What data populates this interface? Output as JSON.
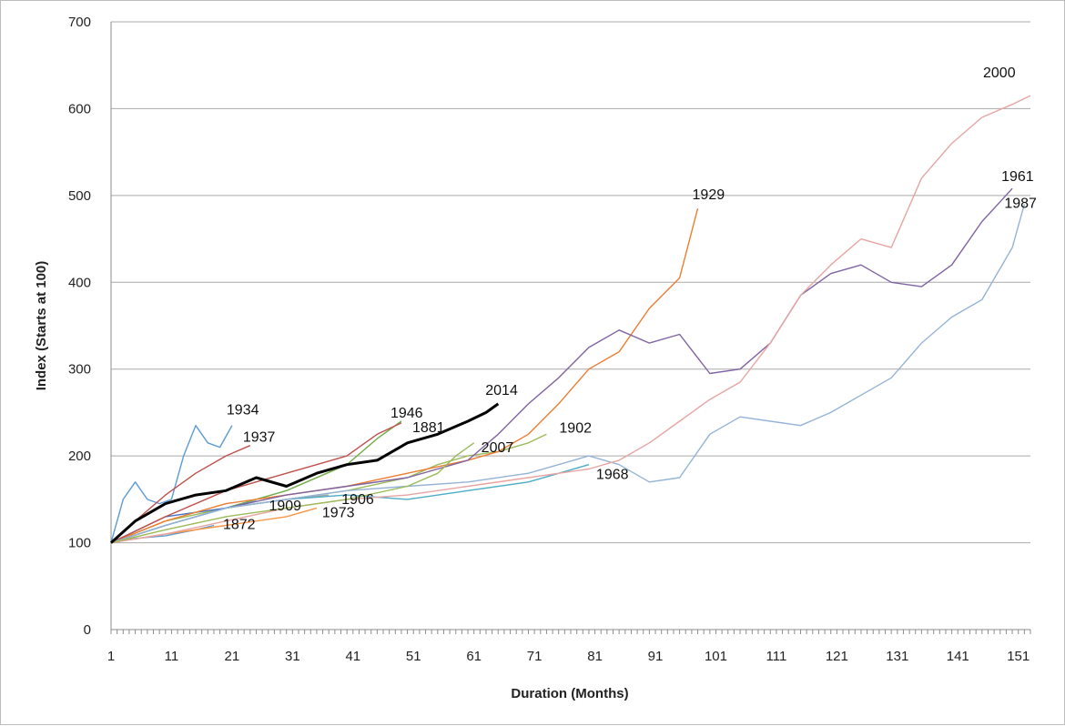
{
  "chart_data": {
    "type": "line",
    "title": "",
    "xlabel": "Duration (Months)",
    "ylabel": "Index (Starts at 100)",
    "xlim": [
      1,
      153
    ],
    "ylim": [
      0,
      700
    ],
    "x_ticks": [
      "1",
      "11",
      "21",
      "31",
      "41",
      "51",
      "61",
      "71",
      "81",
      "91",
      "101",
      "111",
      "121",
      "131",
      "141",
      "151"
    ],
    "y_ticks": [
      "0",
      "100",
      "200",
      "300",
      "400",
      "500",
      "600",
      "700"
    ],
    "grid": "horizontal",
    "series": [
      {
        "name": "1872",
        "color": "#5b9bd5",
        "x": [
          1,
          5,
          10,
          15,
          18
        ],
        "y": [
          100,
          105,
          108,
          115,
          120
        ]
      },
      {
        "name": "1881",
        "color": "#70ad47",
        "x": [
          1,
          10,
          20,
          30,
          40,
          45,
          49
        ],
        "y": [
          100,
          120,
          140,
          160,
          190,
          220,
          240
        ]
      },
      {
        "name": "1902",
        "color": "#9bbb59",
        "x": [
          1,
          10,
          20,
          30,
          40,
          50,
          55,
          60,
          65,
          70,
          73
        ],
        "y": [
          100,
          125,
          140,
          150,
          160,
          175,
          190,
          200,
          205,
          215,
          225
        ]
      },
      {
        "name": "1906",
        "color": "#a5a5a5",
        "x": [
          1,
          10,
          20,
          30,
          37
        ],
        "y": [
          100,
          120,
          140,
          150,
          155
        ]
      },
      {
        "name": "1909",
        "color": "#4472c4",
        "x": [
          1,
          10,
          20,
          25
        ],
        "y": [
          100,
          130,
          140,
          148
        ]
      },
      {
        "name": "1929",
        "color": "#ed7d31",
        "x": [
          1,
          10,
          20,
          30,
          40,
          50,
          60,
          65,
          70,
          75,
          80,
          85,
          90,
          95,
          98
        ],
        "y": [
          100,
          125,
          145,
          155,
          165,
          180,
          195,
          205,
          225,
          260,
          300,
          320,
          370,
          405,
          485
        ]
      },
      {
        "name": "1934",
        "color": "#5b9bd5",
        "x": [
          1,
          3,
          5,
          7,
          9,
          11,
          13,
          15,
          17,
          19,
          21
        ],
        "y": [
          100,
          150,
          170,
          150,
          145,
          150,
          200,
          235,
          215,
          210,
          235
        ]
      },
      {
        "name": "1937",
        "color": "#c0504d",
        "x": [
          1,
          5,
          10,
          15,
          20,
          24
        ],
        "y": [
          100,
          125,
          155,
          180,
          200,
          212
        ]
      },
      {
        "name": "1946",
        "color": "#c0504d",
        "x": [
          1,
          10,
          20,
          30,
          35,
          40,
          45,
          49
        ],
        "y": [
          100,
          130,
          160,
          180,
          190,
          200,
          225,
          238
        ]
      },
      {
        "name": "1961",
        "color": "#8064a2",
        "x": [
          1,
          10,
          20,
          30,
          40,
          50,
          60,
          65,
          70,
          75,
          80,
          85,
          90,
          95,
          100,
          105,
          110,
          115,
          120,
          125,
          130,
          135,
          140,
          145,
          150
        ],
        "y": [
          100,
          120,
          140,
          155,
          165,
          175,
          195,
          225,
          260,
          290,
          325,
          345,
          330,
          340,
          295,
          300,
          330,
          385,
          410,
          420,
          400,
          395,
          420,
          470,
          508
        ]
      },
      {
        "name": "1968",
        "color": "#4bacc6",
        "x": [
          1,
          10,
          20,
          30,
          40,
          50,
          60,
          70,
          80
        ],
        "y": [
          100,
          120,
          140,
          150,
          155,
          150,
          160,
          170,
          190
        ]
      },
      {
        "name": "1973",
        "color": "#f79646",
        "x": [
          1,
          10,
          20,
          30,
          35
        ],
        "y": [
          100,
          110,
          120,
          130,
          140
        ]
      },
      {
        "name": "1987",
        "color": "#95b3d7",
        "x": [
          1,
          10,
          20,
          30,
          40,
          50,
          60,
          70,
          80,
          85,
          90,
          95,
          100,
          105,
          110,
          115,
          120,
          125,
          130,
          135,
          140,
          145,
          150,
          152
        ],
        "y": [
          100,
          120,
          140,
          150,
          160,
          165,
          170,
          180,
          200,
          190,
          170,
          175,
          225,
          245,
          240,
          235,
          250,
          270,
          290,
          330,
          360,
          380,
          440,
          490
        ]
      },
      {
        "name": "2000",
        "color": "#e6a5a3",
        "x": [
          1,
          10,
          20,
          30,
          40,
          50,
          60,
          70,
          80,
          85,
          90,
          95,
          100,
          105,
          110,
          115,
          120,
          125,
          130,
          135,
          140,
          145,
          150,
          153
        ],
        "y": [
          100,
          110,
          125,
          140,
          150,
          155,
          165,
          175,
          185,
          195,
          215,
          240,
          265,
          285,
          330,
          385,
          420,
          450,
          440,
          520,
          560,
          590,
          605,
          615
        ]
      },
      {
        "name": "2007",
        "color": "#9bbb59",
        "x": [
          1,
          10,
          20,
          30,
          40,
          50,
          55,
          58,
          61
        ],
        "y": [
          100,
          115,
          130,
          140,
          150,
          165,
          180,
          200,
          215
        ]
      },
      {
        "name": "2014",
        "color": "#000000",
        "x": [
          1,
          5,
          10,
          15,
          20,
          25,
          30,
          35,
          40,
          45,
          50,
          55,
          60,
          63,
          65
        ],
        "y": [
          100,
          125,
          145,
          155,
          160,
          175,
          165,
          180,
          190,
          195,
          215,
          225,
          240,
          250,
          260
        ]
      }
    ]
  }
}
